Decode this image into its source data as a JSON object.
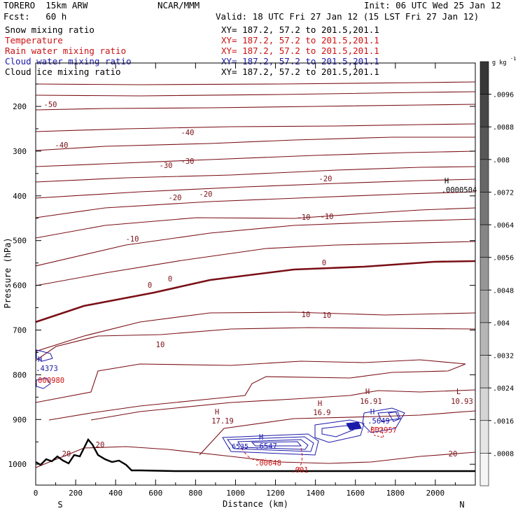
{
  "header": {
    "model": "TORERO  15km ARW",
    "org": "NCAR/MMM",
    "init": "Init: 06 UTC Wed 25 Jan 12",
    "fcst": "Fcst:   60 h",
    "valid": "Valid: 18 UTC Fri 27 Jan 12 (15 LST Fri 27 Jan 12)"
  },
  "legend": [
    {
      "name": "Snow mixing ratio",
      "xy": "XY= 187.2, 57.2 to 201.5,201.1",
      "color": "#000000"
    },
    {
      "name": "Temperature",
      "xy": "XY= 187.2, 57.2 to 201.5,201.1",
      "color": "#cc1111"
    },
    {
      "name": "Rain water mixing ratio",
      "xy": "XY= 187.2, 57.2 to 201.5,201.1",
      "color": "#cc1111"
    },
    {
      "name": "Cloud water mixing ratio",
      "xy": "XY= 187.2, 57.2 to 201.5,201.1",
      "color": "#1a1aaa"
    },
    {
      "name": "Cloud ice mixing ratio",
      "xy": "XY= 187.2, 57.2 to 201.5,201.1",
      "color": "#000000"
    }
  ],
  "chart_data": {
    "type": "cross-section contour",
    "xlabel": "Distance (km)",
    "ylabel": "Pressure (hPa)",
    "xlim": [
      0,
      2200
    ],
    "ylim": [
      1050,
      100
    ],
    "x_ticks": [
      "0",
      "200",
      "400",
      "600",
      "800",
      "1000",
      "1200",
      "1400",
      "1600",
      "1800",
      "2000"
    ],
    "y_ticks": [
      "200",
      "300",
      "400",
      "500",
      "600",
      "700",
      "800",
      "900",
      "1000"
    ],
    "y_tick_values": [
      200,
      300,
      400,
      500,
      600,
      700,
      800,
      900,
      1000
    ],
    "end_labels": {
      "left": "S",
      "right": "N"
    },
    "temperature_isotherm_labels": [
      "-50",
      "-40",
      "-40",
      "-30",
      "-30",
      "-20",
      "-20",
      "-20",
      "-10",
      "-10",
      "-10",
      "0",
      "0",
      "0",
      "10",
      "10",
      "10",
      "20",
      "20",
      "20"
    ],
    "extrema": [
      {
        "type": "H",
        "value": "17.19"
      },
      {
        "type": "H",
        "value": "16.9"
      },
      {
        "type": "H",
        "value": "16.91"
      },
      {
        "type": "L",
        "value": "10.93"
      },
      {
        "type": "H",
        "value": ".0000504"
      },
      {
        "type": "H",
        "value": ".4373"
      },
      {
        "type": "H",
        "value": ".000980"
      },
      {
        "type": "H",
        "value": ".6547"
      },
      {
        "type": "H",
        "value": ".00648"
      },
      {
        "type": "H",
        "value": ".5649"
      },
      {
        "type": "H",
        "value": ".002957"
      },
      {
        "type": "H",
        "value": ".001"
      },
      {
        "type": "H",
        "value": ".6535"
      }
    ],
    "colorbar": {
      "units": "g kg-1",
      "units_label": "g kg",
      "units_exp": "-1",
      "labels": [
        ".0096",
        ".0088",
        ".008",
        ".0072",
        ".0064",
        ".0056",
        ".0048",
        ".004",
        ".0032",
        ".0024",
        ".0016",
        ".0008"
      ]
    }
  },
  "colors": {
    "temperature": "#7a0f16",
    "cloud_water": "#1a1aaa",
    "rain": "#cc1111",
    "terrain": "#000000"
  }
}
